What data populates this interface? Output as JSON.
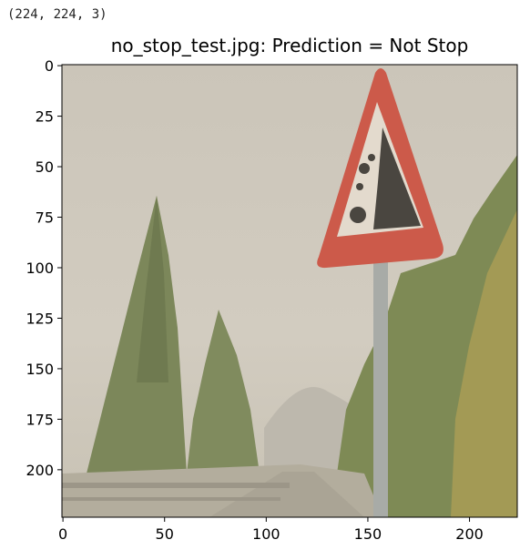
{
  "notebook_output": {
    "shape_text": "(224, 224, 3)"
  },
  "figure": {
    "title": "no_stop_test.jpg: Prediction = Not Stop",
    "image": {
      "sky_color": "#cfc9bd",
      "sign_border_color": "#cc5a4a",
      "sign_fill_color": "#e6ddd0",
      "symbol_color": "#4b4640",
      "tree_color": "#7f8a5c",
      "road_color": "#a9a394",
      "pole_color": "#a7aaa6"
    },
    "y_ticks": [
      {
        "value": 0,
        "label": "0"
      },
      {
        "value": 25,
        "label": "25"
      },
      {
        "value": 50,
        "label": "50"
      },
      {
        "value": 75,
        "label": "75"
      },
      {
        "value": 100,
        "label": "100"
      },
      {
        "value": 125,
        "label": "125"
      },
      {
        "value": 150,
        "label": "150"
      },
      {
        "value": 175,
        "label": "175"
      },
      {
        "value": 200,
        "label": "200"
      }
    ],
    "x_ticks": [
      {
        "value": 0,
        "label": "0"
      },
      {
        "value": 50,
        "label": "50"
      },
      {
        "value": 100,
        "label": "100"
      },
      {
        "value": 150,
        "label": "150"
      },
      {
        "value": 200,
        "label": "200"
      }
    ],
    "extent": [
      0,
      224
    ]
  }
}
